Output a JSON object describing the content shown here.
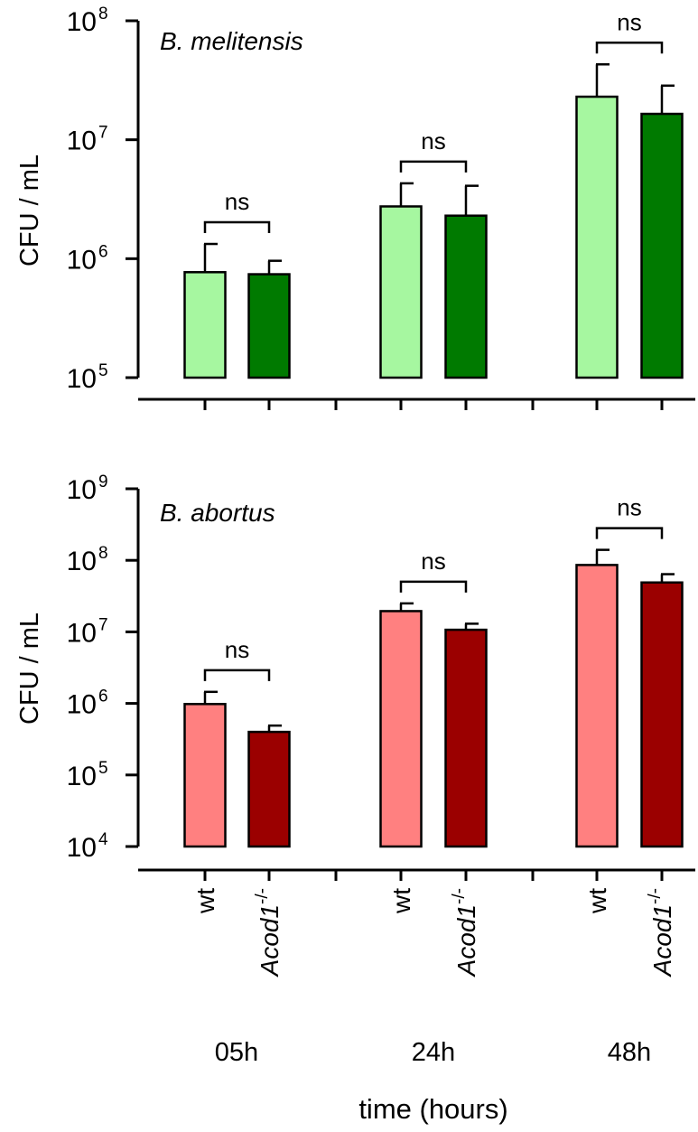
{
  "chart_data": [
    {
      "type": "bar",
      "title": "B. melitensis",
      "ylabel": "CFU / mL",
      "yscale": "log",
      "ylim": [
        100000,
        100000000
      ],
      "yticks": [
        {
          "base": "10",
          "exp": "5"
        },
        {
          "base": "10",
          "exp": "6"
        },
        {
          "base": "10",
          "exp": "7"
        },
        {
          "base": "10",
          "exp": "8"
        }
      ],
      "groups": [
        "05h",
        "24h",
        "48h"
      ],
      "series": [
        {
          "name": "wt",
          "color": "#a6f7a0",
          "values": [
            770000,
            2750000,
            23000000
          ],
          "errors": [
            1330000,
            4300000,
            43000000
          ]
        },
        {
          "name": "Acod1-/-",
          "color": "#007a00",
          "values": [
            740000,
            2300000,
            16500000
          ],
          "errors": [
            960000,
            4100000,
            28500000
          ]
        }
      ],
      "comparisons": [
        "ns",
        "ns",
        "ns"
      ]
    },
    {
      "type": "bar",
      "title": "B. abortus",
      "ylabel": "CFU / mL",
      "yscale": "log",
      "ylim": [
        10000,
        1000000000
      ],
      "yticks": [
        {
          "base": "10",
          "exp": "4"
        },
        {
          "base": "10",
          "exp": "5"
        },
        {
          "base": "10",
          "exp": "6"
        },
        {
          "base": "10",
          "exp": "7"
        },
        {
          "base": "10",
          "exp": "8"
        },
        {
          "base": "10",
          "exp": "9"
        }
      ],
      "groups": [
        "05h",
        "24h",
        "48h"
      ],
      "series": [
        {
          "name": "wt",
          "color": "#ff8080",
          "values": [
            980000,
            19500000,
            86000000
          ],
          "errors": [
            1450000,
            25000000,
            140000000
          ]
        },
        {
          "name": "Acod1-/-",
          "color": "#9b0000",
          "values": [
            400000,
            10700000,
            49000000
          ],
          "errors": [
            490000,
            13000000,
            64000000
          ]
        }
      ],
      "comparisons": [
        "ns",
        "ns",
        "ns"
      ]
    }
  ],
  "xaxis": {
    "category_labels": [
      {
        "text": "wt",
        "italic": false
      },
      {
        "text": "Acod1",
        "sup": "-/-",
        "italic": true
      }
    ],
    "group_labels": [
      "05h",
      "24h",
      "48h"
    ],
    "title": "time (hours)"
  }
}
